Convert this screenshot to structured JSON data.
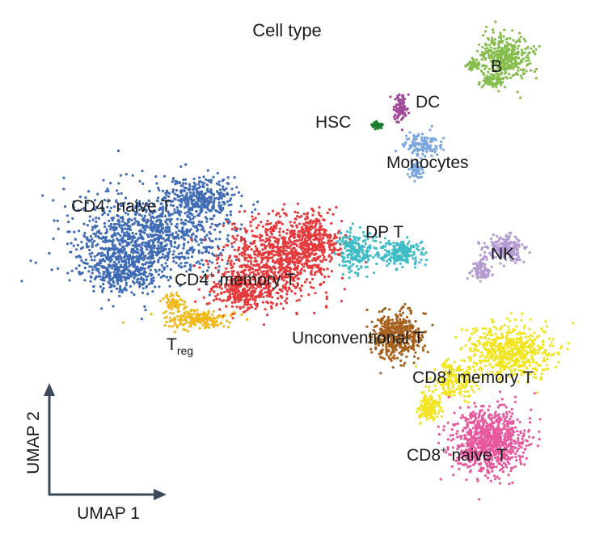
{
  "chart_data": {
    "type": "scatter",
    "title": "Cell type",
    "xlabel": "UMAP 1",
    "ylabel": "UMAP 2",
    "ticks": "none",
    "grid": false,
    "legend": "none (labels placed on clusters)",
    "clusters": [
      {
        "id": "cd4-naive-t",
        "name": "CD4",
        "sup": "+",
        "sub": "",
        "rest": " naive T",
        "color": "#3f6bb5",
        "n": 1700
      },
      {
        "id": "cd4-memory-t",
        "name": "CD4",
        "sup": "+",
        "sub": "",
        "rest": " memory T",
        "color": "#e5393b",
        "n": 1400
      },
      {
        "id": "treg",
        "name": "T",
        "sup": "",
        "sub": "reg",
        "rest": "",
        "color": "#f2b818",
        "n": 260
      },
      {
        "id": "b",
        "name": "B",
        "sup": "",
        "sub": "",
        "rest": "",
        "color": "#86bd4e",
        "n": 520
      },
      {
        "id": "dc",
        "name": "DC",
        "sup": "",
        "sub": "",
        "rest": "",
        "color": "#a14a9b",
        "n": 110
      },
      {
        "id": "hsc",
        "name": "HSC",
        "sup": "",
        "sub": "",
        "rest": "",
        "color": "#1a7a2e",
        "n": 35
      },
      {
        "id": "monocytes",
        "name": "Monocytes",
        "sup": "",
        "sub": "",
        "rest": "",
        "color": "#7aa6dd",
        "n": 190
      },
      {
        "id": "dp-t",
        "name": "DP T",
        "sup": "",
        "sub": "",
        "rest": "",
        "color": "#3fbcc6",
        "n": 420
      },
      {
        "id": "nk",
        "name": "NK",
        "sup": "",
        "sub": "",
        "rest": "",
        "color": "#b39bd2",
        "n": 300
      },
      {
        "id": "unconventional-t",
        "name": "Unconventional T",
        "sup": "",
        "sub": "",
        "rest": "",
        "color": "#a5611c",
        "n": 420
      },
      {
        "id": "cd8-memory-t",
        "name": "CD8",
        "sup": "+",
        "sub": "",
        "rest": " memory T",
        "color": "#f1e41e",
        "n": 900
      },
      {
        "id": "cd8-naive-t",
        "name": "CD8",
        "sup": "+",
        "sub": "",
        "rest": " naive T",
        "color": "#e8589f",
        "n": 900
      }
    ]
  }
}
